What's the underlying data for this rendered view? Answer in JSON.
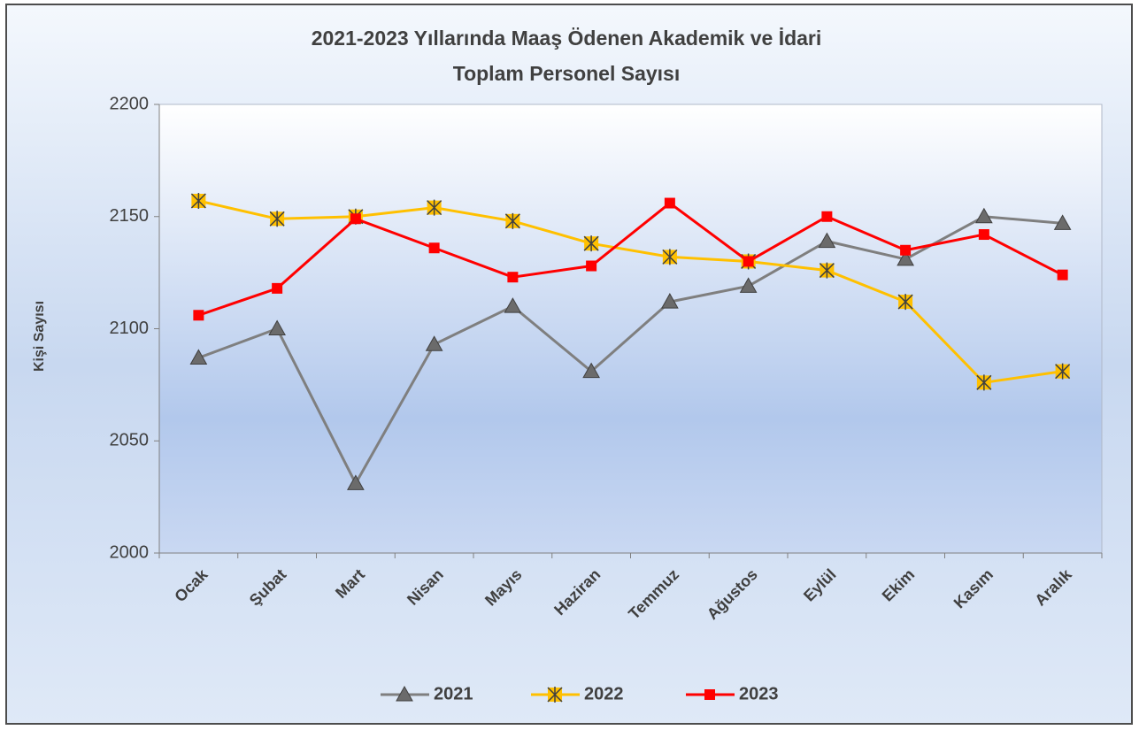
{
  "chart_data": {
    "type": "line",
    "title": "2021-2023 Yıllarında Maaş Ödenen Akademik ve İdari",
    "subtitle": "Toplam  Personel Sayısı",
    "y_label": "Kişi Sayısı",
    "categories": [
      "Ocak",
      "Şubat",
      "Mart",
      "Nisan",
      "Mayıs",
      "Haziran",
      "Temmuz",
      "Ağustos",
      "Eylül",
      "Ekim",
      "Kasım",
      "Aralık"
    ],
    "series": [
      {
        "name": "2021",
        "color": "#7f7f7f",
        "marker": "triangle",
        "values": [
          2087,
          2100,
          2031,
          2093,
          2110,
          2081,
          2112,
          2119,
          2139,
          2131,
          2150,
          2147
        ]
      },
      {
        "name": "2022",
        "color": "#ffc000",
        "marker": "asterisk",
        "values": [
          2157,
          2149,
          2150,
          2154,
          2148,
          2138,
          2132,
          2130,
          2126,
          2112,
          2076,
          2081
        ]
      },
      {
        "name": "2023",
        "color": "#ff0000",
        "marker": "square",
        "values": [
          2106,
          2118,
          2149,
          2136,
          2123,
          2128,
          2156,
          2130,
          2150,
          2135,
          2142,
          2124
        ]
      }
    ],
    "ylim": [
      2000,
      2200
    ],
    "yticks": [
      2000,
      2050,
      2100,
      2150,
      2200
    ],
    "grid": false,
    "legend": "bottom"
  }
}
